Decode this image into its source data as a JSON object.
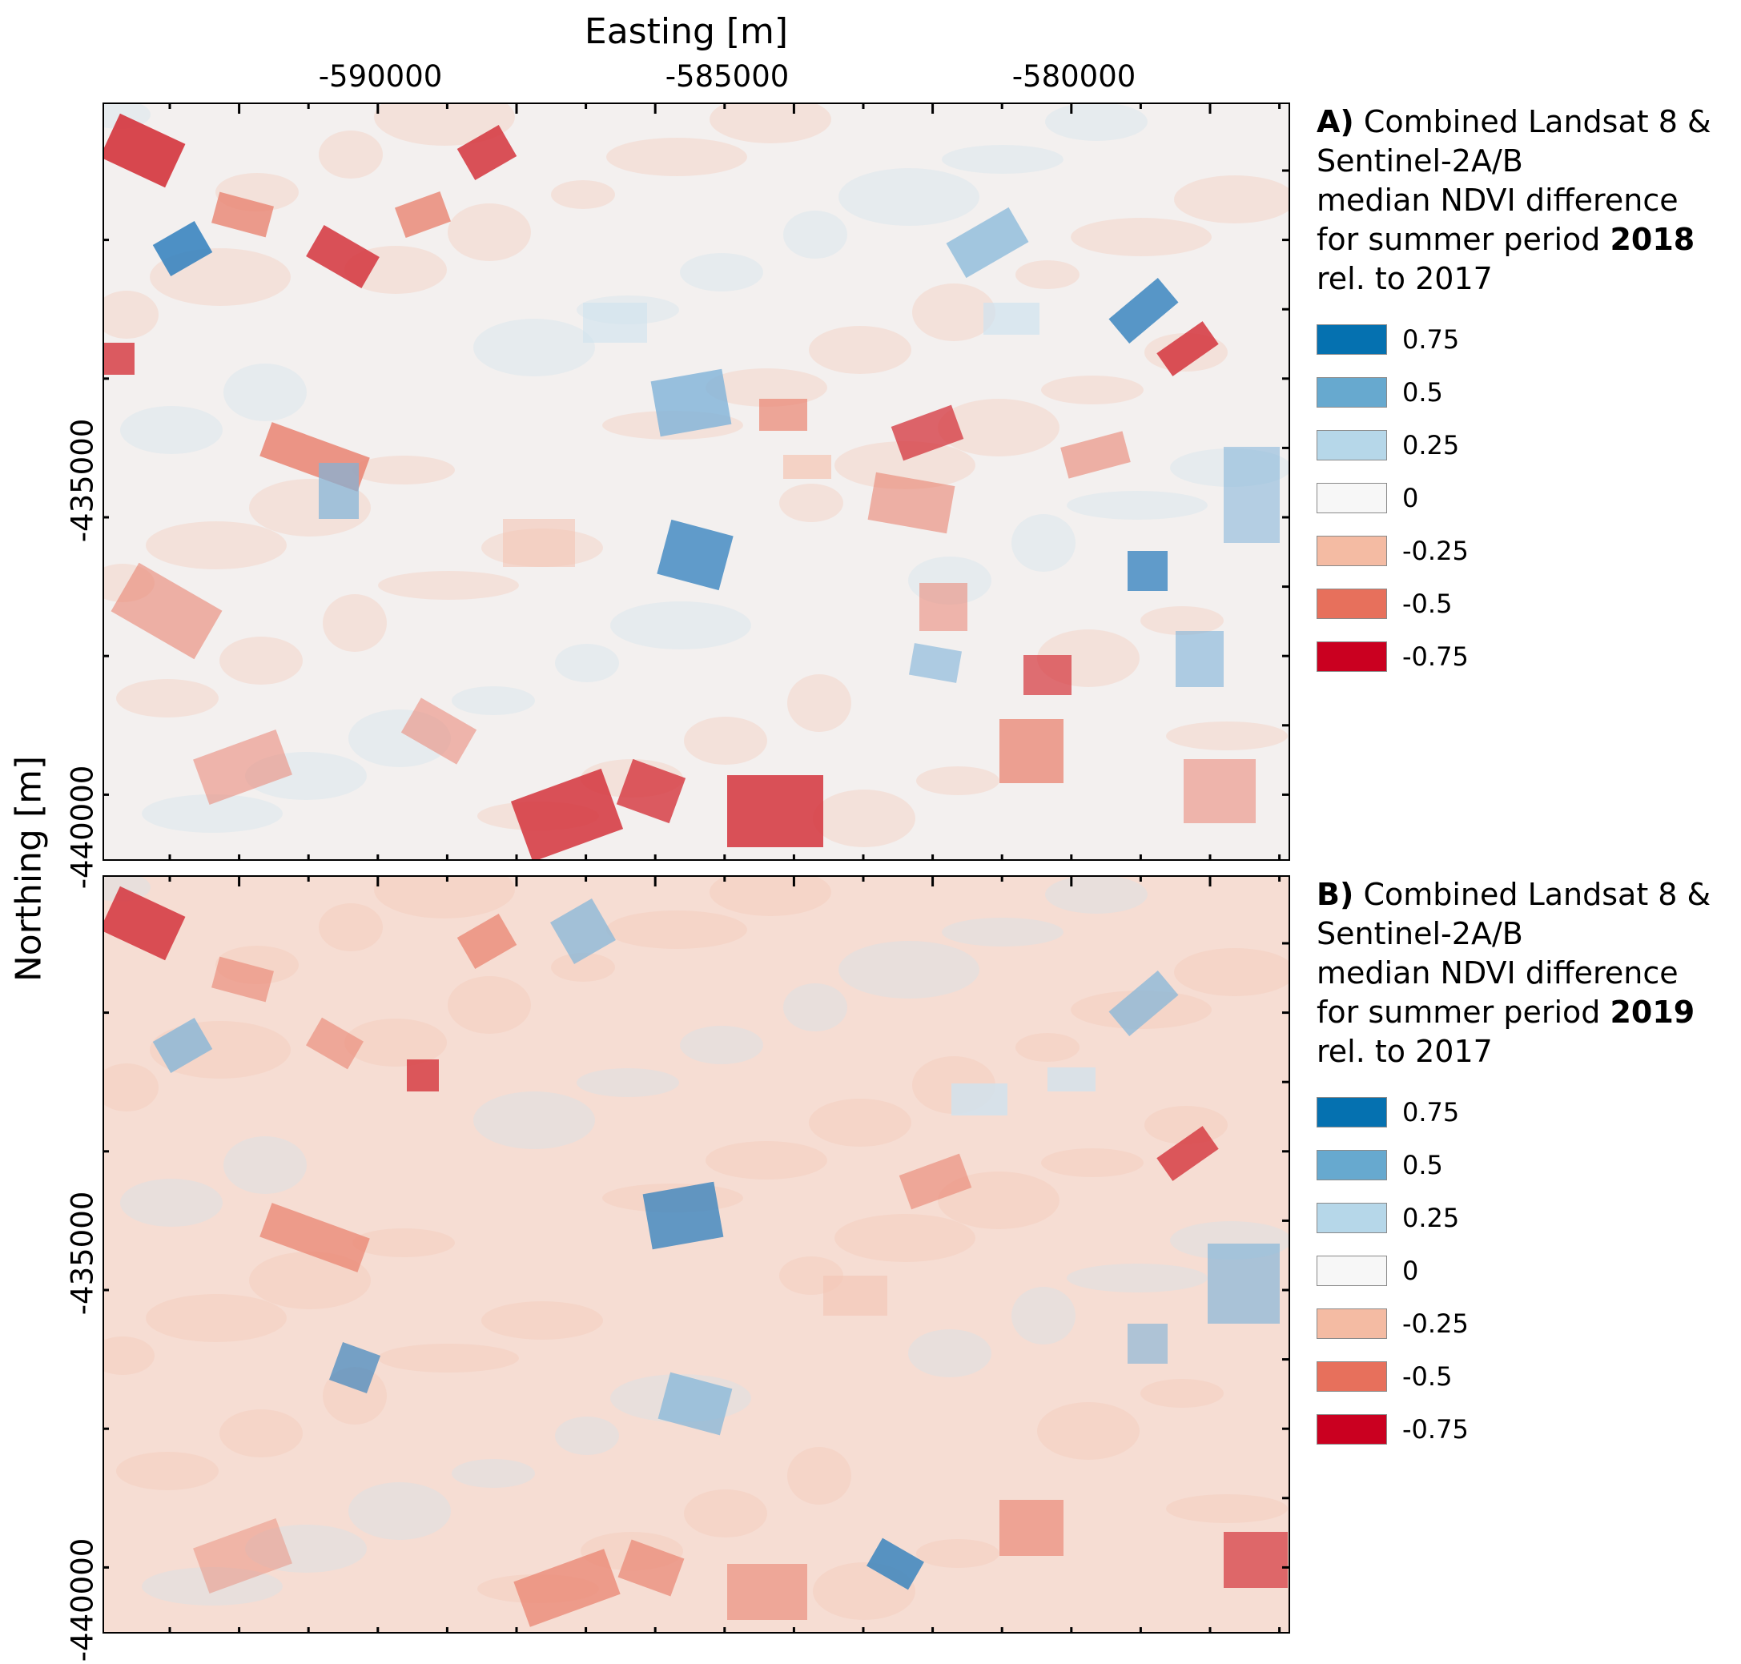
{
  "axes": {
    "x_title": "Easting [m]",
    "y_title": "Northing [m]",
    "x_ticks": [
      "-590000",
      "-585000",
      "-580000"
    ],
    "y_ticks": [
      "-435000",
      "-440000"
    ]
  },
  "panels": [
    {
      "label": "A)",
      "title_lines": [
        "Combined Landsat 8 &",
        "Sentinel-2A/B",
        "median NDVI difference"
      ],
      "period_prefix": "for summer period ",
      "year": "2018",
      "reference": "rel. to 2017"
    },
    {
      "label": "B)",
      "title_lines": [
        "Combined Landsat 8 &",
        "Sentinel-2A/B",
        "median NDVI difference"
      ],
      "period_prefix": "for summer period ",
      "year": "2019",
      "reference": "rel. to 2017"
    }
  ],
  "legend": [
    {
      "label": "0.75",
      "color": "#0571b0"
    },
    {
      "label": "0.5",
      "color": "#67a9cf"
    },
    {
      "label": "0.25",
      "color": "#b6d7e9"
    },
    {
      "label": "0",
      "color": "#f7f7f7"
    },
    {
      "label": "-0.25",
      "color": "#f4bba3"
    },
    {
      "label": "-0.5",
      "color": "#e7705c"
    },
    {
      "label": "-0.75",
      "color": "#ca0020"
    }
  ],
  "map_colors": {
    "background_a": "#f3f0ef",
    "background_b": "#f6ddd3",
    "pale_red": "#f3c5b4",
    "mid_red": "#e98472",
    "strong_red": "#d4343c",
    "pale_blue": "#cfe2ef",
    "mid_blue": "#7fb3d8",
    "strong_blue": "#2f7fbd"
  }
}
